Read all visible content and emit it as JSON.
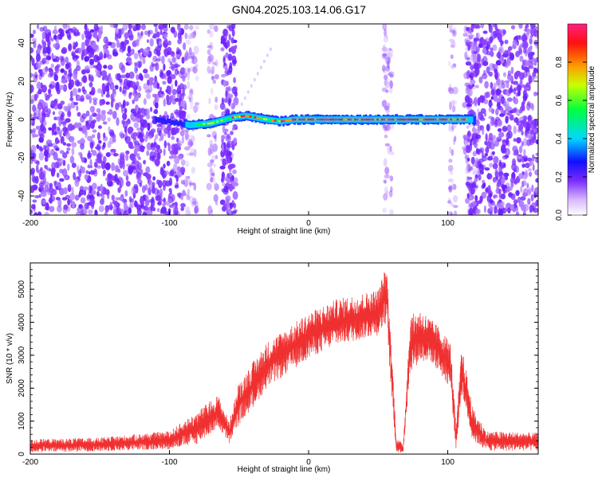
{
  "figure": {
    "title": "GN04.2025.103.14.06.G17"
  },
  "colors": {
    "background": "#ffffff",
    "axis": "#000000",
    "snr_line": "#f03030",
    "scatter_noise": "#7a2bff"
  },
  "chart_data": [
    {
      "type": "heatmap",
      "title": "GN04.2025.103.14.06.G17",
      "xlabel": "Height of straight line (km)",
      "ylabel": "Frequency (Hz)",
      "xlim": [
        -200,
        165
      ],
      "ylim": [
        -50,
        50
      ],
      "x_ticks": [
        -200,
        -100,
        0,
        100
      ],
      "y_ticks": [
        40,
        20,
        0,
        -20,
        -40
      ],
      "grid": false,
      "colorbar": {
        "label": "Normalized spectral amplitude",
        "range": [
          0.0,
          1.0
        ],
        "ticks": [
          0.0,
          0.2,
          0.4,
          0.6,
          0.8
        ],
        "colormap": "rainbow"
      },
      "ridge": [
        {
          "x": -110,
          "freq": 0
        },
        {
          "x": -85,
          "freq": -3
        },
        {
          "x": -70,
          "freq": -2
        },
        {
          "x": -55,
          "freq": 1
        },
        {
          "x": -45,
          "freq": 2
        },
        {
          "x": -30,
          "freq": 0
        },
        {
          "x": -20,
          "freq": -1
        },
        {
          "x": -10,
          "freq": 0
        },
        {
          "x": 0,
          "freq": 0
        },
        {
          "x": 20,
          "freq": 0
        },
        {
          "x": 40,
          "freq": 0
        },
        {
          "x": 60,
          "freq": 0
        },
        {
          "x": 80,
          "freq": 0
        },
        {
          "x": 100,
          "freq": 0
        },
        {
          "x": 120,
          "freq": 0
        }
      ]
    },
    {
      "type": "line",
      "xlabel": "Height of straight line (km)",
      "ylabel": "SNR (10 * v/v)",
      "xlim": [
        -200,
        165
      ],
      "ylim": [
        0,
        5800
      ],
      "x_ticks": [
        -200,
        -100,
        0,
        100
      ],
      "y_ticks": [
        0,
        1000,
        2000,
        3000,
        4000,
        5000
      ],
      "grid": false,
      "envelope": [
        {
          "x": -200,
          "lo": 50,
          "hi": 450
        },
        {
          "x": -150,
          "lo": 80,
          "hi": 500
        },
        {
          "x": -100,
          "lo": 150,
          "hi": 700
        },
        {
          "x": -80,
          "lo": 300,
          "hi": 1300
        },
        {
          "x": -65,
          "lo": 800,
          "hi": 1800
        },
        {
          "x": -57,
          "lo": 300,
          "hi": 1000
        },
        {
          "x": -50,
          "lo": 900,
          "hi": 2200
        },
        {
          "x": -40,
          "lo": 1400,
          "hi": 2800
        },
        {
          "x": -30,
          "lo": 2000,
          "hi": 3400
        },
        {
          "x": -20,
          "lo": 2300,
          "hi": 3700
        },
        {
          "x": -10,
          "lo": 2600,
          "hi": 4000
        },
        {
          "x": 0,
          "lo": 2900,
          "hi": 4300
        },
        {
          "x": 10,
          "lo": 3100,
          "hi": 4500
        },
        {
          "x": 20,
          "lo": 3300,
          "hi": 4700
        },
        {
          "x": 30,
          "lo": 3400,
          "hi": 4800
        },
        {
          "x": 40,
          "lo": 3500,
          "hi": 4900
        },
        {
          "x": 50,
          "lo": 3600,
          "hi": 5000
        },
        {
          "x": 56,
          "lo": 4000,
          "hi": 5750
        },
        {
          "x": 60,
          "lo": 1500,
          "hi": 3000
        },
        {
          "x": 63,
          "lo": 50,
          "hi": 500
        },
        {
          "x": 68,
          "lo": 50,
          "hi": 300
        },
        {
          "x": 73,
          "lo": 2500,
          "hi": 4200
        },
        {
          "x": 80,
          "lo": 2800,
          "hi": 4400
        },
        {
          "x": 88,
          "lo": 2800,
          "hi": 4100
        },
        {
          "x": 95,
          "lo": 2400,
          "hi": 3800
        },
        {
          "x": 102,
          "lo": 2000,
          "hi": 3400
        },
        {
          "x": 106,
          "lo": 100,
          "hi": 800
        },
        {
          "x": 110,
          "lo": 1800,
          "hi": 3300
        },
        {
          "x": 118,
          "lo": 400,
          "hi": 1400
        },
        {
          "x": 128,
          "lo": 100,
          "hi": 700
        },
        {
          "x": 165,
          "lo": 100,
          "hi": 650
        }
      ]
    }
  ]
}
